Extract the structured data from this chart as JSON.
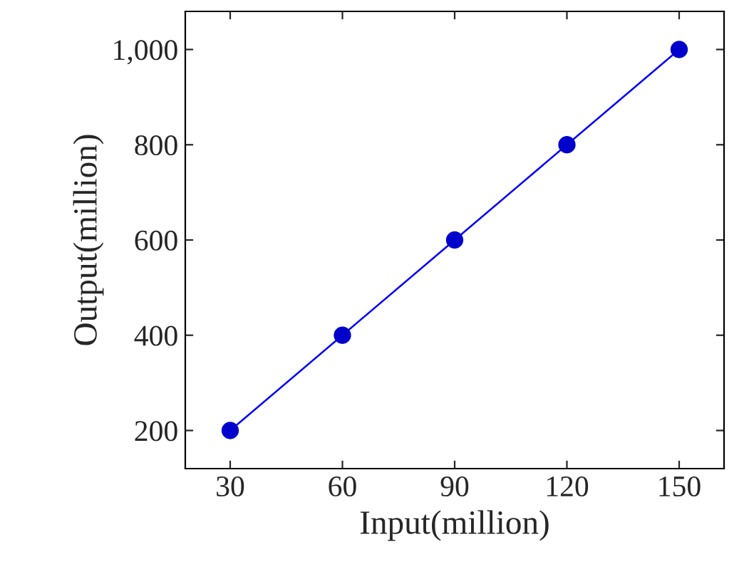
{
  "chart_data": {
    "type": "line",
    "xlabel": "Input(million)",
    "ylabel": "Output(million)",
    "x": [
      30,
      60,
      90,
      120,
      150
    ],
    "series": [
      {
        "color": "#0000ff",
        "values": [
          200,
          400,
          600,
          800,
          1000
        ]
      }
    ],
    "xlim": [
      18,
      162
    ],
    "ylim": [
      120,
      1080
    ],
    "xticks": [
      30,
      60,
      90,
      120,
      150
    ],
    "yticks": [
      200,
      400,
      600,
      800,
      {
        "value": 1000,
        "label": "1,000"
      }
    ],
    "marker": "circle",
    "line_style": "solid",
    "grid": false,
    "legend": false
  }
}
